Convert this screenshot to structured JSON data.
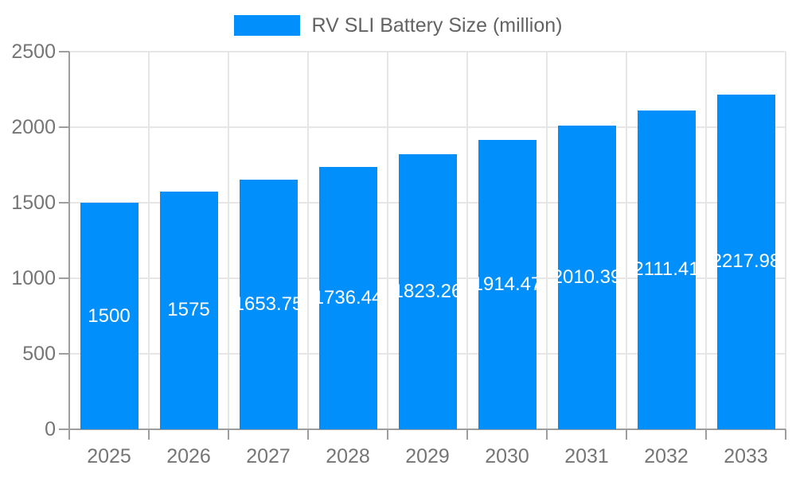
{
  "chart_data": {
    "type": "bar",
    "title": "RV SLI Battery Size (million)",
    "legend": {
      "label": "RV SLI Battery Size (million)",
      "position": "top-center",
      "marker": "rectangle"
    },
    "categories": [
      "2025",
      "2026",
      "2027",
      "2028",
      "2029",
      "2030",
      "2031",
      "2032",
      "2033"
    ],
    "series": [
      {
        "name": "RV SLI Battery Size (million)",
        "values": [
          1500,
          1575,
          1653.75,
          1736.44,
          1823.26,
          1914.47,
          2010.39,
          2111.41,
          2217.98
        ],
        "bar_labels": [
          "1500",
          "1575",
          "1653.75",
          "1736.44",
          "1823.26",
          "1914.47",
          "2010.39",
          "2111.41",
          "2217.98"
        ]
      }
    ],
    "xlabel": "",
    "ylabel": "",
    "ylim": [
      0,
      2500
    ],
    "y_ticks": [
      "0",
      "500",
      "1000",
      "1500",
      "2000",
      "2500"
    ],
    "grid": true,
    "colors": {
      "bar": "#008FFB",
      "gridline": "#e6e6e6",
      "axis": "#9e9e9e",
      "tick_label": "#757575",
      "legend_text": "#636363",
      "bar_label": "#ffffff",
      "background": "#ffffff"
    }
  }
}
